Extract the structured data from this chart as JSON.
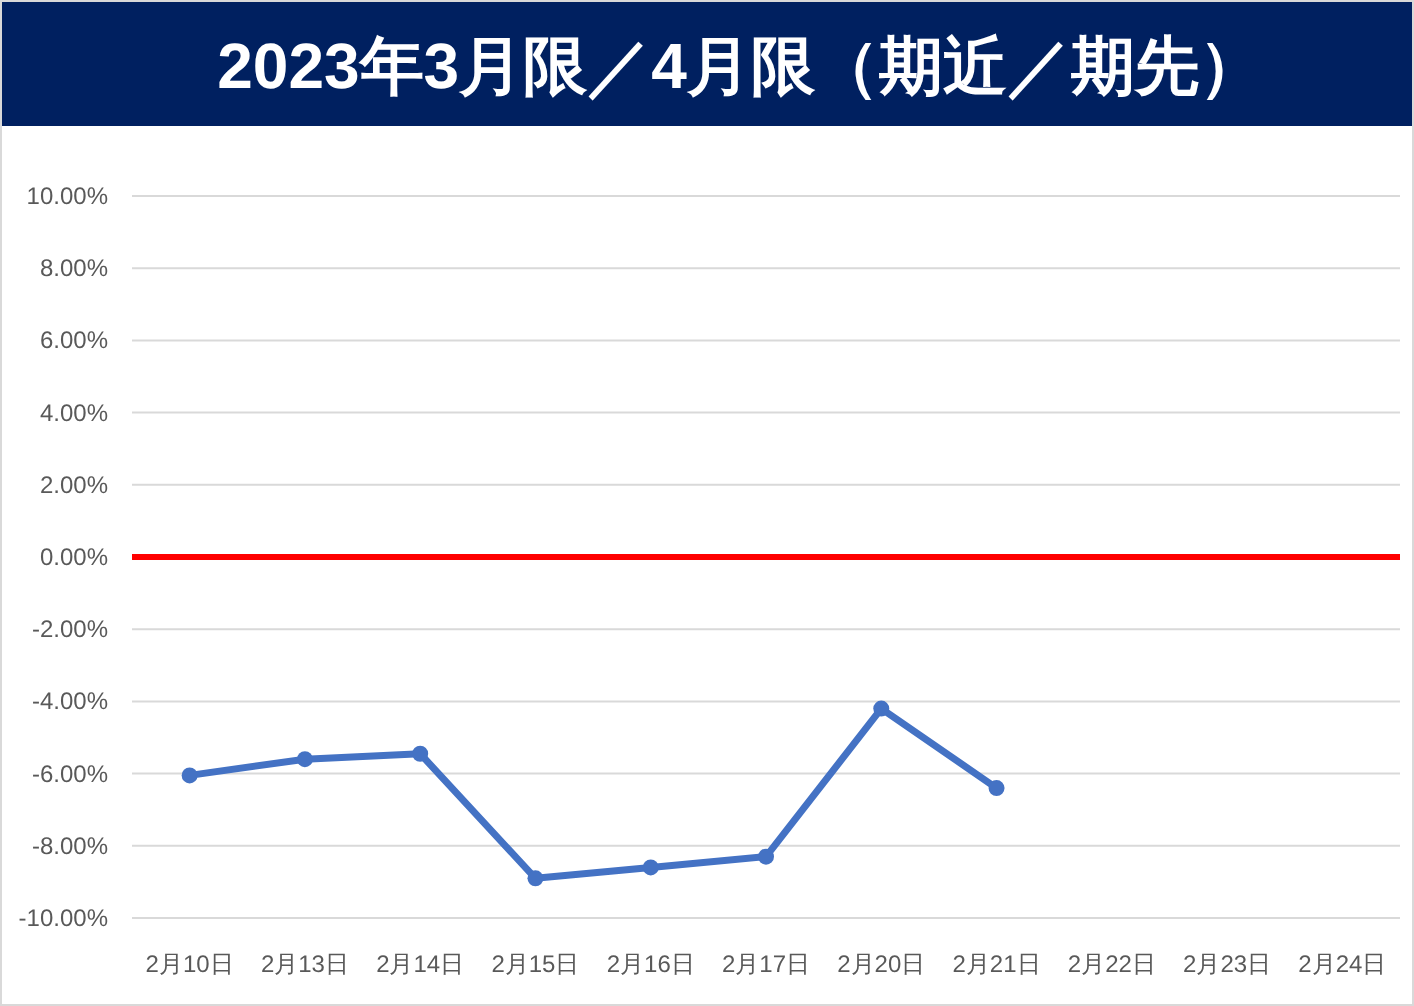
{
  "chart_data": {
    "type": "line",
    "title": "2023年3月限／4月限（期近／期先）",
    "categories": [
      "2月10日",
      "2月13日",
      "2月14日",
      "2月15日",
      "2月16日",
      "2月17日",
      "2月20日",
      "2月21日",
      "2月22日",
      "2月23日",
      "2月24日"
    ],
    "series": [
      {
        "color": "#4472c4",
        "values": [
          -6.05,
          -5.6,
          -5.45,
          -8.9,
          -8.6,
          -8.3,
          -4.2,
          -6.4,
          null,
          null,
          null
        ]
      }
    ],
    "marker": "circle",
    "line_style": "solid",
    "grid": "y",
    "ylim": [
      -10,
      10
    ],
    "yticks": [
      {
        "value": -10,
        "label": "-10.00%"
      },
      {
        "value": -8,
        "label": "-8.00%"
      },
      {
        "value": -6,
        "label": "-6.00%"
      },
      {
        "value": -4,
        "label": "-4.00%"
      },
      {
        "value": -2,
        "label": "-2.00%"
      },
      {
        "value": 0,
        "label": "0.00%"
      },
      {
        "value": 2,
        "label": "2.00%"
      },
      {
        "value": 4,
        "label": "4.00%"
      },
      {
        "value": 6,
        "label": "6.00%"
      },
      {
        "value": 8,
        "label": "8.00%"
      },
      {
        "value": 10,
        "label": "10.00%"
      }
    ],
    "ref_lines": [
      {
        "axis": "y",
        "value": 0,
        "color": "#ff0000",
        "line_style": "solid"
      }
    ]
  }
}
